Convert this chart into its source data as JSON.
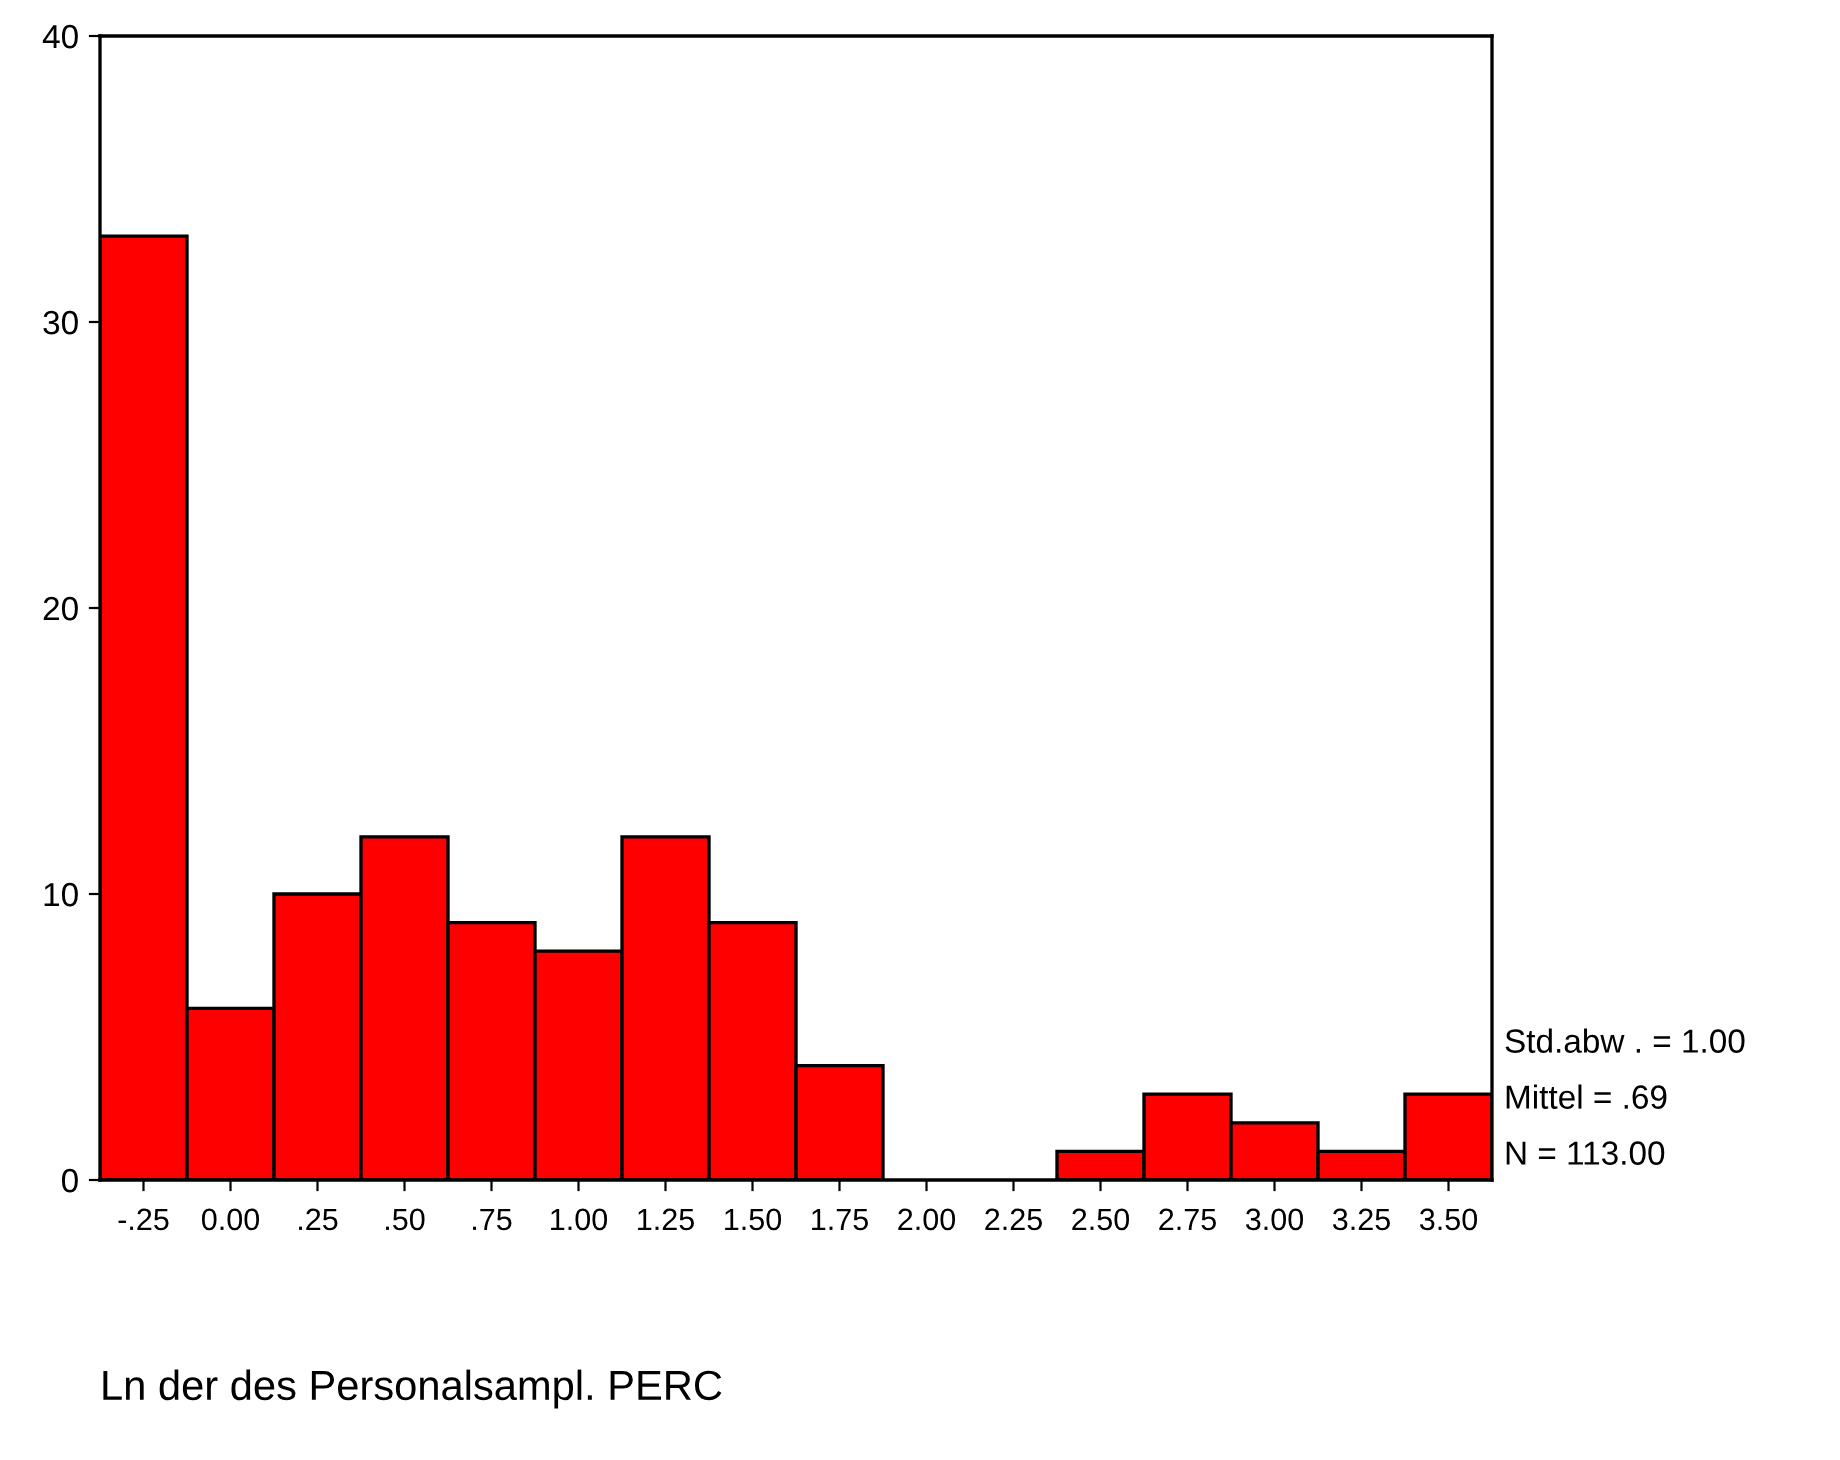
{
  "chart_data": {
    "type": "histogram",
    "xlabel": "Ln der des Personalsampl. PERC",
    "bins": [
      -0.375,
      -0.125,
      0.125,
      0.375,
      0.625,
      0.875,
      1.125,
      1.375,
      1.625,
      1.875,
      2.125,
      2.375,
      2.625,
      2.875,
      3.125,
      3.375,
      3.625
    ],
    "values": [
      33,
      6,
      10,
      12,
      9,
      8,
      12,
      9,
      4,
      0,
      0,
      1,
      3,
      2,
      1,
      3
    ],
    "color": "#ff0000",
    "xlim": [
      -0.375,
      3.625
    ],
    "xticks": [
      {
        "value": -0.25,
        "label": "-.25"
      },
      {
        "value": 0,
        "label": "0.00"
      },
      {
        "value": 0.25,
        "label": ".25"
      },
      {
        "value": 0.5,
        "label": ".50"
      },
      {
        "value": 0.75,
        "label": ".75"
      },
      {
        "value": 1,
        "label": "1.00"
      },
      {
        "value": 1.25,
        "label": "1.25"
      },
      {
        "value": 1.5,
        "label": "1.50"
      },
      {
        "value": 1.75,
        "label": "1.75"
      },
      {
        "value": 2,
        "label": "2.00"
      },
      {
        "value": 2.25,
        "label": "2.25"
      },
      {
        "value": 2.5,
        "label": "2.50"
      },
      {
        "value": 2.75,
        "label": "2.75"
      },
      {
        "value": 3,
        "label": "3.00"
      },
      {
        "value": 3.25,
        "label": "3.25"
      },
      {
        "value": 3.5,
        "label": "3.50"
      }
    ],
    "ylim": [
      0,
      40
    ],
    "yticks": [
      0,
      10,
      20,
      30,
      40
    ],
    "grid": false,
    "annotations": [
      "Std.abw . = 1.00",
      "Mittel = .69",
      "N = 113.00"
    ]
  }
}
